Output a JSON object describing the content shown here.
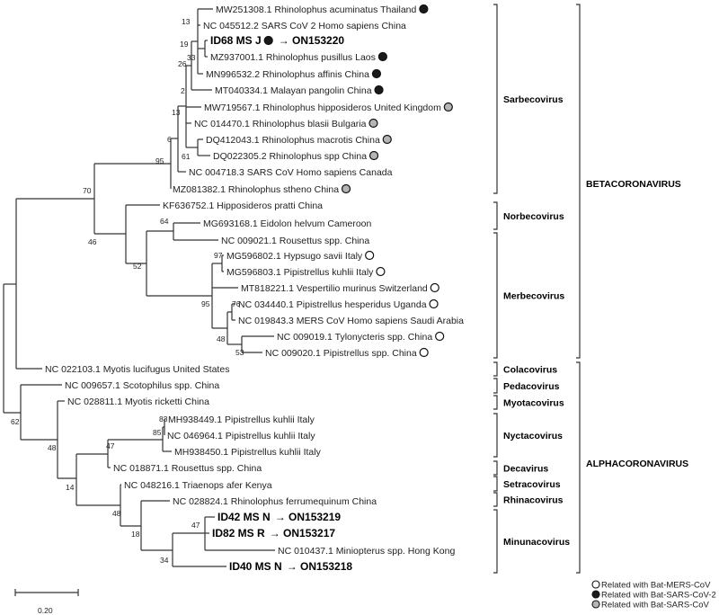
{
  "colors": {
    "mers": "#ffffff",
    "sars_cov_2": "#1a1a1a",
    "sars_cov": "#b5b5b5",
    "line": "#333333"
  },
  "leaves": [
    {
      "label": "MW251308.1 Rhinolophus acuminatus Thailand",
      "marker": "sars_cov_2"
    },
    {
      "label": "NC 045512.2 SARS CoV 2 Homo sapiens China"
    },
    {
      "label": "ID68 MS J",
      "marker": "sars_cov_2",
      "accession": "→ ON153220",
      "bold": true
    },
    {
      "label": "MZ937001.1 Rhinolophus pusillus Laos",
      "marker": "sars_cov_2"
    },
    {
      "label": "MN996532.2 Rhinolophus affinis China",
      "marker": "sars_cov_2"
    },
    {
      "label": "MT040334.1 Malayan pangolin China",
      "marker": "sars_cov_2"
    },
    {
      "label": "MW719567.1 Rhinolophus hipposideros United Kingdom",
      "marker": "sars_cov"
    },
    {
      "label": "NC 014470.1 Rhinolophus blasii Bulgaria",
      "marker": "sars_cov"
    },
    {
      "label": "DQ412043.1 Rhinolophus macrotis China",
      "marker": "sars_cov"
    },
    {
      "label": "DQ022305.2 Rhinolophus spp China",
      "marker": "sars_cov"
    },
    {
      "label": "NC 004718.3 SARS CoV Homo sapiens Canada"
    },
    {
      "label": "MZ081382.1 Rhinolophus stheno China",
      "marker": "sars_cov"
    },
    {
      "label": "KF636752.1 Hipposideros pratti China"
    },
    {
      "label": "MG693168.1 Eidolon helvum Cameroon"
    },
    {
      "label": "NC 009021.1 Rousettus spp. China"
    },
    {
      "label": "MG596802.1 Hypsugo savii Italy",
      "marker": "mers"
    },
    {
      "label": "MG596803.1 Pipistrellus kuhlii Italy",
      "marker": "mers"
    },
    {
      "label": "MT818221.1 Vespertilio murinus Switzerland",
      "marker": "mers"
    },
    {
      "label": "NC 034440.1 Pipistrellus hesperidus Uganda",
      "marker": "mers"
    },
    {
      "label": "NC 019843.3 MERS CoV Homo sapiens Saudi Arabia"
    },
    {
      "label": "NC 009019.1 Tylonycteris spp. China",
      "marker": "mers"
    },
    {
      "label": "NC 009020.1 Pipistrellus spp. China",
      "marker": "mers"
    },
    {
      "label": "NC 022103.1 Myotis lucifugus United States"
    },
    {
      "label": "NC 009657.1 Scotophilus spp. China"
    },
    {
      "label": "NC 028811.1 Myotis ricketti China"
    },
    {
      "label": "MH938449.1 Pipistrellus kuhlii Italy"
    },
    {
      "label": "NC 046964.1 Pipistrellus kuhlii Italy"
    },
    {
      "label": "MH938450.1 Pipistrellus kuhlii Italy"
    },
    {
      "label": "NC 018871.1 Rousettus spp. China"
    },
    {
      "label": "NC 048216.1 Triaenops afer Kenya"
    },
    {
      "label": "NC 028824.1 Rhinolophus ferrumequinum China"
    },
    {
      "label": "ID42 MS N",
      "accession": "→ ON153219",
      "bold": true
    },
    {
      "label": "ID82 MS R",
      "accession": "→ ON153217",
      "bold": true
    },
    {
      "label": "NC 010437.1 Miniopterus spp. Hong Kong"
    },
    {
      "label": "ID40 MS N",
      "accession": "→ ON153218",
      "bold": true
    }
  ],
  "bootstrap": [
    "13",
    "19",
    "33",
    "26",
    "2",
    "13",
    "6",
    "61",
    "95",
    "70",
    "46",
    "64",
    "52",
    "97",
    "95",
    "76",
    "48",
    "53",
    "62",
    "48",
    "47",
    "83",
    "85",
    "14",
    "48",
    "18",
    "47",
    "34"
  ],
  "subgenera": [
    "Sarbecovirus",
    "Norbecovirus",
    "Merbecovirus",
    "Colacovirus",
    "Pedacovirus",
    "Myotacovirus",
    "Nyctacovirus",
    "Decavirus",
    "Setracovirus",
    "Rhinacovirus",
    "Minunacovirus"
  ],
  "genera": [
    "BETACORONAVIRUS",
    "ALPHACORONAVIRUS"
  ],
  "scale_bar": {
    "label": "0.20",
    "value": 0.2
  },
  "legend": [
    {
      "label": "Related with Bat-MERS-CoV",
      "marker": "mers"
    },
    {
      "label": "Related with Bat-SARS-CoV-2",
      "marker": "sars_cov_2"
    },
    {
      "label": "Related with Bat-SARS-CoV",
      "marker": "sars_cov"
    }
  ]
}
